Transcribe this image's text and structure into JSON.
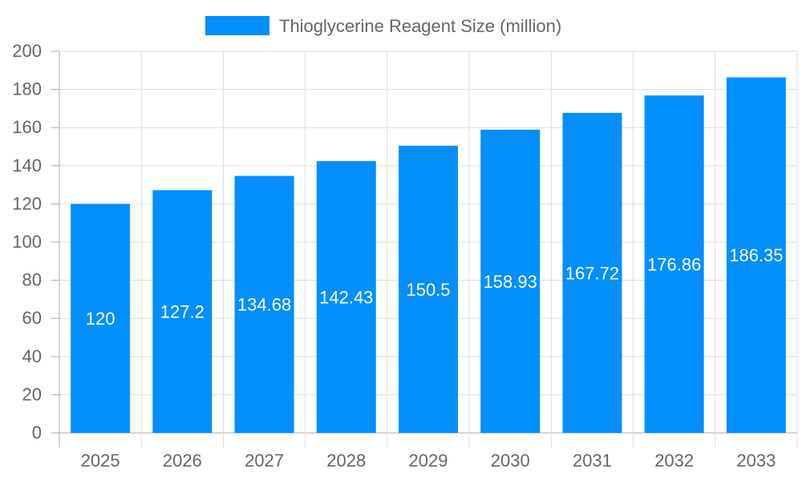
{
  "chart_data": {
    "type": "bar",
    "title": "",
    "xlabel": "",
    "ylabel": "",
    "categories": [
      "2025",
      "2026",
      "2027",
      "2028",
      "2029",
      "2030",
      "2031",
      "2032",
      "2033"
    ],
    "series": [
      {
        "name": "Thioglycerine Reagent Size (million)",
        "values": [
          120,
          127.2,
          134.68,
          142.43,
          150.5,
          158.93,
          167.72,
          176.86,
          186.35
        ],
        "color": "#038ffc"
      }
    ],
    "data_labels": [
      "120",
      "127.2",
      "134.68",
      "142.43",
      "150.5",
      "158.93",
      "167.72",
      "176.86",
      "186.35"
    ],
    "ylim": [
      0,
      200
    ],
    "yticks": [
      0,
      20,
      40,
      60,
      80,
      100,
      120,
      140,
      160,
      180,
      200
    ],
    "grid": true,
    "legend": "top-center"
  }
}
